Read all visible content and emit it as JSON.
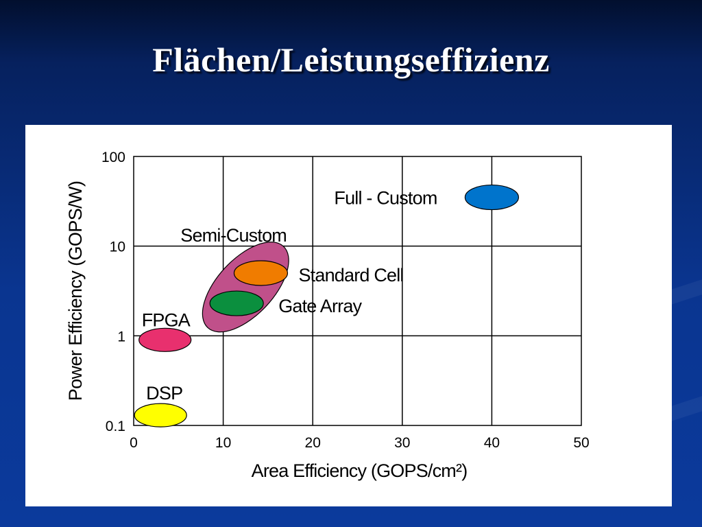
{
  "slide": {
    "title": "Flächen/Leistungseffizienz"
  },
  "chart_data": {
    "type": "scatter",
    "xlabel": "Area Efficiency (GOPS/cm²)",
    "ylabel": "Power Efficiency (GOPS/W)",
    "xlim": [
      0,
      50
    ],
    "ylim": [
      0.1,
      100
    ],
    "y_scale": "log",
    "grid": true,
    "x_ticks": [
      "0",
      "10",
      "20",
      "30",
      "40",
      "50"
    ],
    "x_tick_values": [
      0,
      10,
      20,
      30,
      40,
      50
    ],
    "y_ticks": [
      "0.1",
      "1",
      "10",
      "100"
    ],
    "y_tick_values": [
      0.1,
      1,
      10,
      100
    ],
    "series": [
      {
        "name": "Full - Custom",
        "x": 40,
        "y": 35,
        "color": "#0074cc"
      },
      {
        "name": "Semi-Custom",
        "x": 12.5,
        "y": 3.5,
        "color": "#c0508a"
      },
      {
        "name": "Standard Cell",
        "x": 14.2,
        "y": 5.0,
        "color": "#f07c00"
      },
      {
        "name": "Gate Array",
        "x": 11.5,
        "y": 2.3,
        "color": "#0b8f3e"
      },
      {
        "name": "FPGA",
        "x": 3.5,
        "y": 0.9,
        "color": "#e8306e"
      },
      {
        "name": "DSP",
        "x": 3.0,
        "y": 0.13,
        "color": "#ffff00"
      }
    ]
  }
}
